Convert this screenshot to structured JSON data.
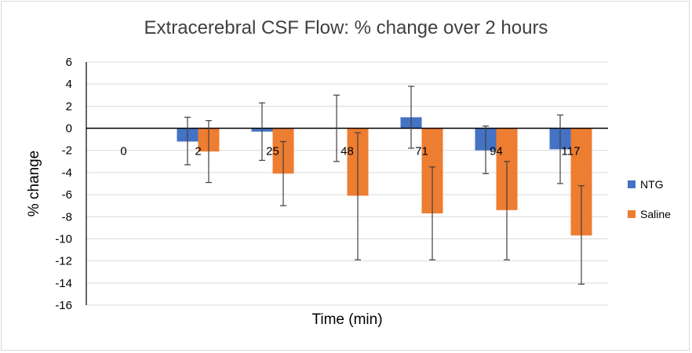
{
  "chart_data": {
    "type": "bar",
    "title": "Extracerebral CSF Flow: % change over 2 hours",
    "xlabel": "Time (min)",
    "ylabel": "% change",
    "categories": [
      "0",
      "2",
      "25",
      "48",
      "71",
      "94",
      "117"
    ],
    "ylim": [
      -16,
      6
    ],
    "yticks": [
      6,
      4,
      2,
      0,
      -2,
      -4,
      -6,
      -8,
      -10,
      -12,
      -14,
      -16
    ],
    "grid": true,
    "legend_position": "right",
    "series": [
      {
        "name": "NTG",
        "color": "#4472c4",
        "values": [
          null,
          -1.2,
          -0.3,
          0.0,
          1.0,
          -2.0,
          -1.9
        ],
        "error_upper": [
          null,
          1.0,
          2.3,
          3.0,
          3.8,
          0.2,
          1.2
        ],
        "error_lower": [
          null,
          -3.3,
          -2.9,
          -3.0,
          -1.8,
          -4.1,
          -5.0
        ]
      },
      {
        "name": "Saline",
        "color": "#ed7d31",
        "values": [
          null,
          -2.1,
          -4.1,
          -6.1,
          -7.7,
          -7.4,
          -9.7
        ],
        "error_upper": [
          null,
          0.7,
          -1.2,
          -0.4,
          -3.5,
          -3.0,
          -5.2
        ],
        "error_lower": [
          null,
          -4.9,
          -7.0,
          -11.9,
          -11.9,
          -11.9,
          -14.1
        ]
      }
    ]
  }
}
